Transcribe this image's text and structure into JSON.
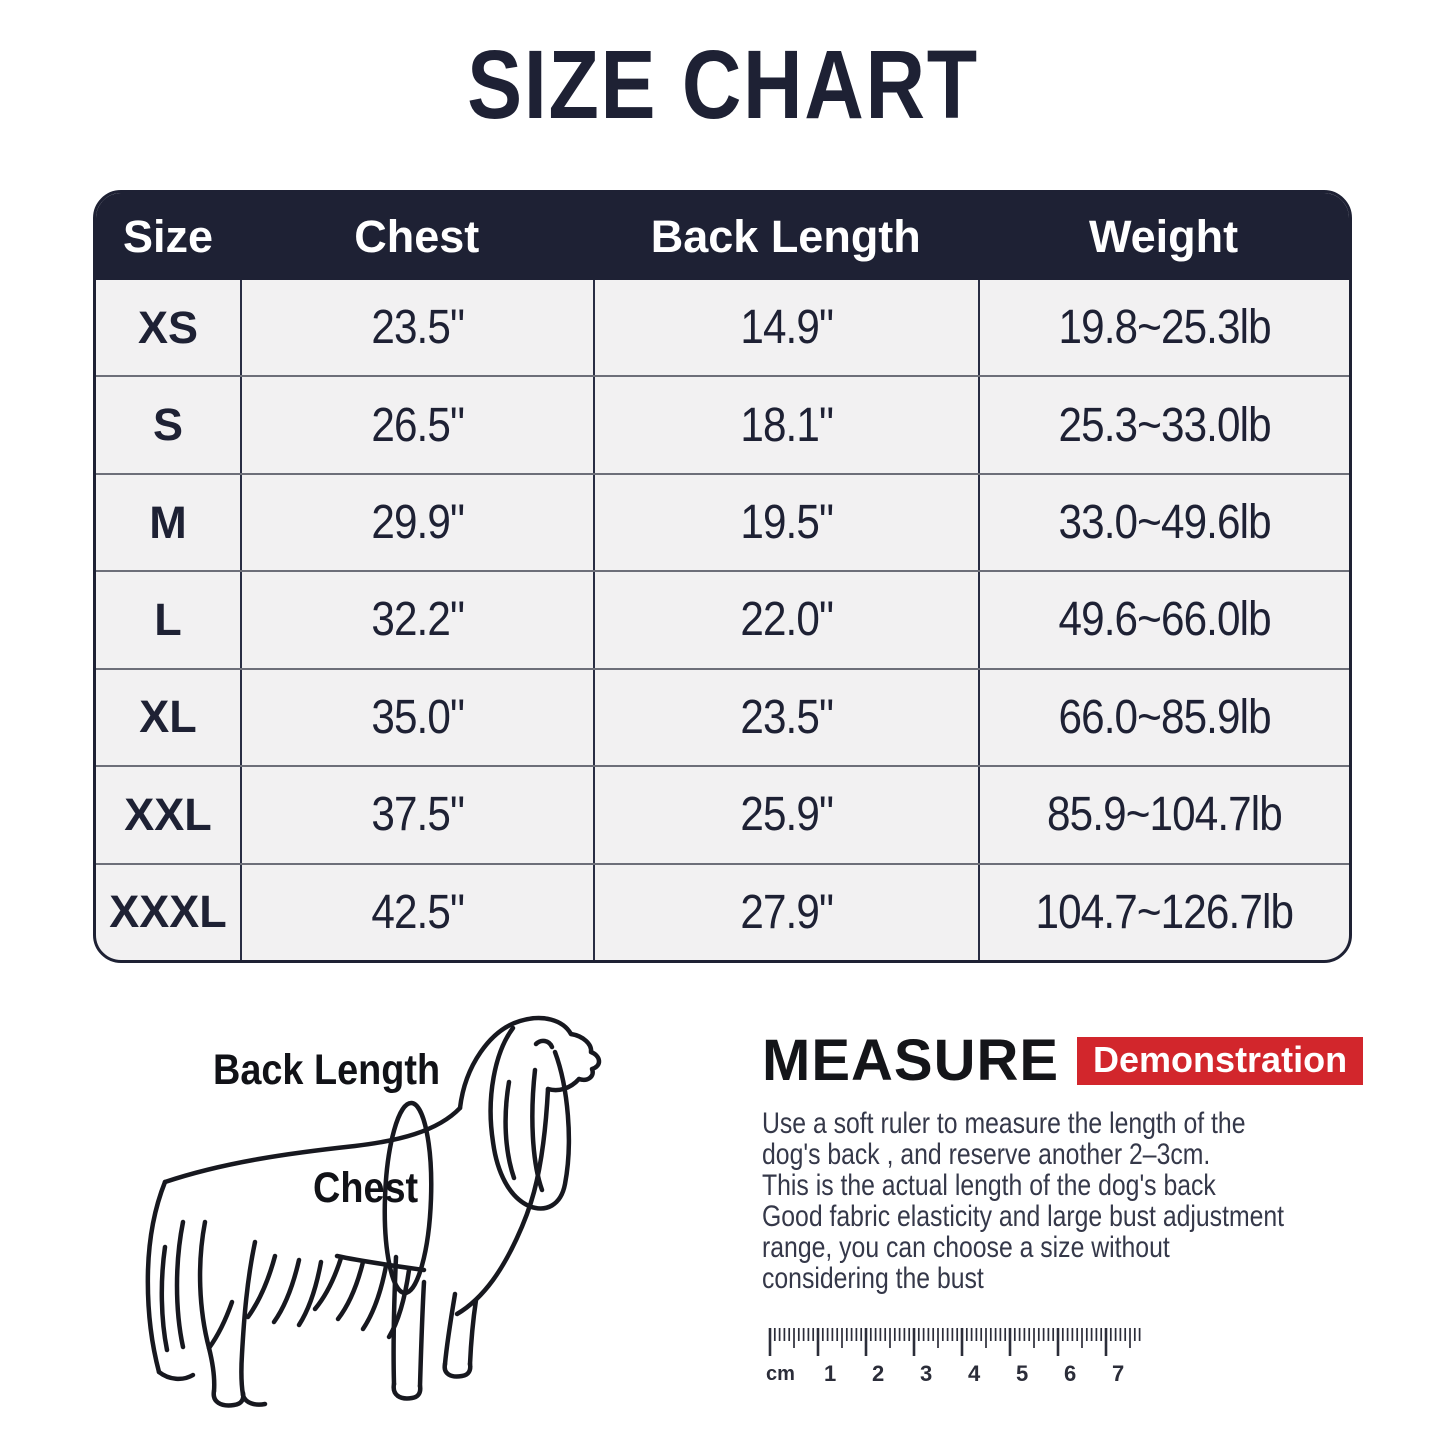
{
  "page": {
    "title": "SIZE CHART"
  },
  "table": {
    "headers": {
      "size": "Size",
      "chest": "Chest",
      "back_length": "Back Length",
      "weight": "Weight"
    },
    "rows": [
      {
        "size": "XS",
        "chest": "23.5\"",
        "back_length": "14.9\"",
        "weight": "19.8~25.3lb"
      },
      {
        "size": "S",
        "chest": "26.5\"",
        "back_length": "18.1\"",
        "weight": "25.3~33.0lb"
      },
      {
        "size": "M",
        "chest": "29.9\"",
        "back_length": "19.5\"",
        "weight": "33.0~49.6lb"
      },
      {
        "size": "L",
        "chest": "32.2\"",
        "back_length": "22.0\"",
        "weight": "49.6~66.0lb"
      },
      {
        "size": "XL",
        "chest": "35.0\"",
        "back_length": "23.5\"",
        "weight": "66.0~85.9lb"
      },
      {
        "size": "XXL",
        "chest": "37.5\"",
        "back_length": "25.9\"",
        "weight": "85.9~104.7lb"
      },
      {
        "size": "XXXL",
        "chest": "42.5\"",
        "back_length": "27.9\"",
        "weight": "104.7~126.7lb"
      }
    ]
  },
  "diagram": {
    "back_length_label": "Back Length",
    "chest_label": "Chest"
  },
  "measure": {
    "heading": "MEASURE",
    "badge": "Demonstration",
    "description": "Use a soft ruler to measure the length of  the\ndog's back , and reserve another 2–3cm.\nThis is the actual length of the dog's back\nGood fabric elasticity and large bust adjustment\nrange, you can choose a size without\nconsidering the bust"
  },
  "ruler": {
    "unit_label": "cm",
    "numbers": [
      "1",
      "2",
      "3",
      "4",
      "5",
      "6",
      "7"
    ]
  },
  "colors": {
    "navy": "#1e2134",
    "row_background": "#f2f1f2",
    "badge_red": "#d2262c",
    "body_text": "#353849",
    "line_art": "#17181f"
  },
  "chart_data": {
    "type": "table",
    "title": "SIZE CHART",
    "columns": [
      "Size",
      "Chest",
      "Back Length",
      "Weight"
    ],
    "rows": [
      [
        "XS",
        "23.5\"",
        "14.9\"",
        "19.8~25.3lb"
      ],
      [
        "S",
        "26.5\"",
        "18.1\"",
        "25.3~33.0lb"
      ],
      [
        "M",
        "29.9\"",
        "19.5\"",
        "33.0~49.6lb"
      ],
      [
        "L",
        "32.2\"",
        "22.0\"",
        "49.6~66.0lb"
      ],
      [
        "XL",
        "35.0\"",
        "23.5\"",
        "66.0~85.9lb"
      ],
      [
        "XXL",
        "37.5\"",
        "25.9\"",
        "85.9~104.7lb"
      ],
      [
        "XXXL",
        "42.5\"",
        "27.9\"",
        "104.7~126.7lb"
      ]
    ]
  }
}
